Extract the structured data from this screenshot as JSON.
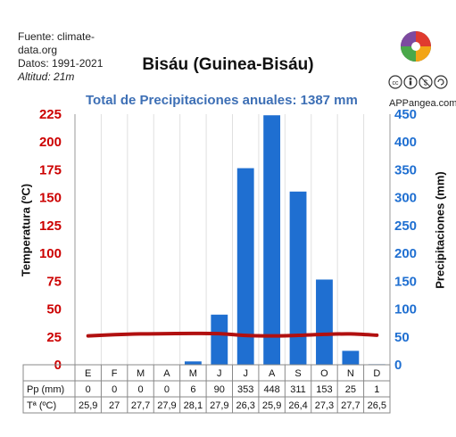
{
  "source": {
    "line1": "Fuente: climate-",
    "line2": "data.org",
    "period": "Datos: 1991-2021",
    "altitude": "Altitud: 21m"
  },
  "brand": "APPangea.com",
  "colors": {
    "temp_axis": "#cc0000",
    "bars": "#1f6fd1",
    "temp_line": "#b11010",
    "subtitle": "#3d6fb5"
  },
  "chart_data": {
    "type": "bar+line",
    "title": "Bisáu (Guinea-Bisáu)",
    "subtitle": "Total de Precipitaciones anuales: 1387 mm",
    "categories": [
      "E",
      "F",
      "M",
      "A",
      "M",
      "J",
      "J",
      "A",
      "S",
      "O",
      "N",
      "D"
    ],
    "y_left": {
      "label": "Temperatura (ºC)",
      "range": [
        0,
        225
      ],
      "ticks": [
        0,
        25,
        50,
        75,
        100,
        125,
        150,
        175,
        200,
        225
      ]
    },
    "y_right": {
      "label": "Precipitaciones (mm)",
      "range": [
        0,
        450
      ],
      "ticks": [
        0,
        50,
        100,
        150,
        200,
        250,
        300,
        350,
        400,
        450
      ]
    },
    "series": [
      {
        "name": "Pp (mm)",
        "type": "bar",
        "axis": "right",
        "values": [
          0,
          0,
          0,
          0,
          6,
          90,
          353,
          448,
          311,
          153,
          25,
          1
        ]
      },
      {
        "name": "Tª (ºC)",
        "type": "line",
        "axis": "left",
        "values": [
          25.9,
          27,
          27.7,
          27.9,
          28.1,
          27.9,
          26.3,
          25.9,
          26.4,
          27.3,
          27.7,
          26.5
        ]
      }
    ],
    "table": {
      "row_labels": [
        "Pp (mm)",
        "Tª (ºC)"
      ],
      "rows": [
        [
          "0",
          "0",
          "0",
          "0",
          "6",
          "90",
          "353",
          "448",
          "311",
          "153",
          "25",
          "1"
        ],
        [
          "25,9",
          "27",
          "27,7",
          "27,9",
          "28,1",
          "27,9",
          "26,3",
          "25,9",
          "26,4",
          "27,3",
          "27,7",
          "26,5"
        ]
      ]
    },
    "grid": "vertical"
  }
}
